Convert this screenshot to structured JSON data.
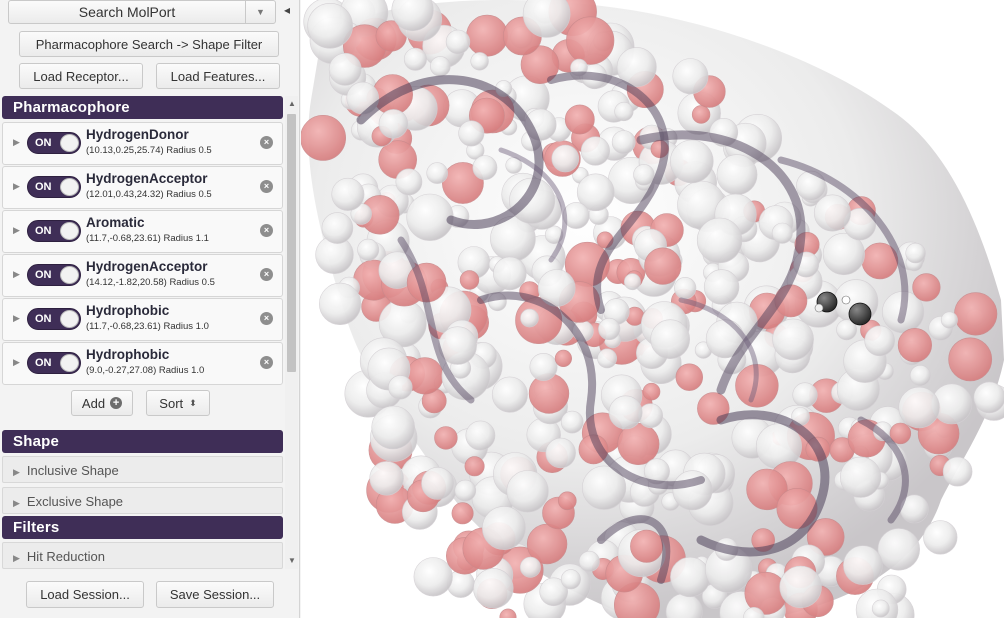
{
  "toolbar": {
    "search_label": "Search MolPort",
    "search_dropdown_icon": "caret-down-icon",
    "collapse_icon": "chevron-left-icon",
    "shape_filter_label": "Pharmacophore Search -> Shape Filter",
    "load_receptor_label": "Load Receptor...",
    "load_features_label": "Load Features..."
  },
  "pharmacophore": {
    "title": "Pharmacophore",
    "features": [
      {
        "name": "HydrogenDonor",
        "desc": "(10.13,0.25,25.74) Radius 0.5",
        "state": "ON"
      },
      {
        "name": "HydrogenAcceptor",
        "desc": "(12.01,0.43,24.32) Radius 0.5",
        "state": "ON"
      },
      {
        "name": "Aromatic",
        "desc": "(11.7,-0.68,23.61) Radius 1.1",
        "state": "ON"
      },
      {
        "name": "HydrogenAcceptor",
        "desc": "(14.12,-1.82,20.58) Radius 0.5",
        "state": "ON"
      },
      {
        "name": "Hydrophobic",
        "desc": "(11.7,-0.68,23.61) Radius 1.0",
        "state": "ON"
      },
      {
        "name": "Hydrophobic",
        "desc": "(9.0,-0.27,27.08) Radius 1.0",
        "state": "ON"
      }
    ],
    "add_label": "Add",
    "sort_label": "Sort"
  },
  "shape": {
    "title": "Shape",
    "inclusive_label": "Inclusive Shape",
    "exclusive_label": "Exclusive Shape"
  },
  "filters": {
    "title": "Filters",
    "hit_reduction_label": "Hit Reduction"
  },
  "session": {
    "load_label": "Load Session...",
    "save_label": "Save Session..."
  },
  "colors": {
    "accent": "#3f2e57",
    "surface_white": "#ececec",
    "surface_red": "#e39a9a",
    "cartoon": "#5a4a66"
  }
}
